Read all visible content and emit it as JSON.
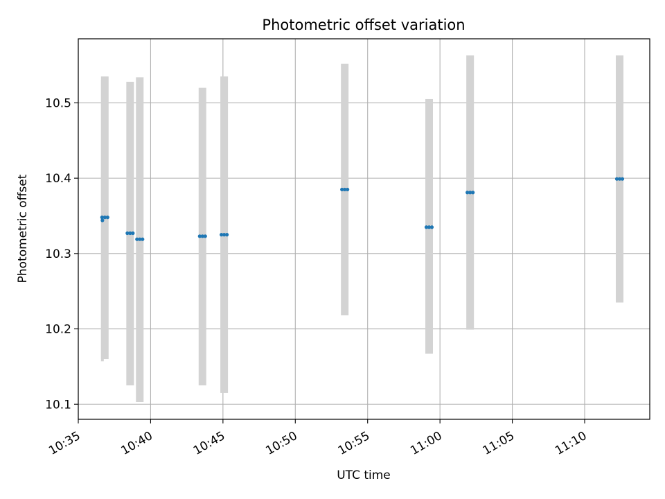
{
  "chart_data": {
    "type": "scatter",
    "title": "Photometric offset variation",
    "xlabel": "UTC time",
    "ylabel": "Photometric offset",
    "xlim": [
      "10:35:00",
      "11:14:30"
    ],
    "ylim": [
      10.08,
      10.585
    ],
    "grid": true,
    "x_ticks": [
      "10:35",
      "10:40",
      "10:45",
      "10:50",
      "10:55",
      "11:00",
      "11:05",
      "11:10"
    ],
    "y_ticks": [
      10.1,
      10.2,
      10.3,
      10.4,
      10.5
    ],
    "colors": {
      "points": "#1f77b4",
      "error_bars": "#d3d3d3",
      "grid": "#b0b0b0"
    },
    "groups": [
      {
        "time": "10:36:50",
        "value": 10.348,
        "low": 10.16,
        "high": 10.535
      },
      {
        "time": "10:38:35",
        "value": 10.327,
        "low": 10.125,
        "high": 10.528
      },
      {
        "time": "10:39:15",
        "value": 10.319,
        "low": 10.103,
        "high": 10.534
      },
      {
        "time": "10:43:35",
        "value": 10.323,
        "low": 10.125,
        "high": 10.52
      },
      {
        "time": "10:45:05",
        "value": 10.325,
        "low": 10.115,
        "high": 10.535
      },
      {
        "time": "10:53:25",
        "value": 10.385,
        "low": 10.218,
        "high": 10.552
      },
      {
        "time": "10:59:15",
        "value": 10.335,
        "low": 10.167,
        "high": 10.505
      },
      {
        "time": "11:02:05",
        "value": 10.381,
        "low": 10.199,
        "high": 10.563
      },
      {
        "time": "11:12:25",
        "value": 10.399,
        "low": 10.235,
        "high": 10.563
      }
    ],
    "extra_points": [
      {
        "time": "10:36:40",
        "value": 10.344,
        "low": 10.157,
        "high": 10.53
      }
    ]
  }
}
